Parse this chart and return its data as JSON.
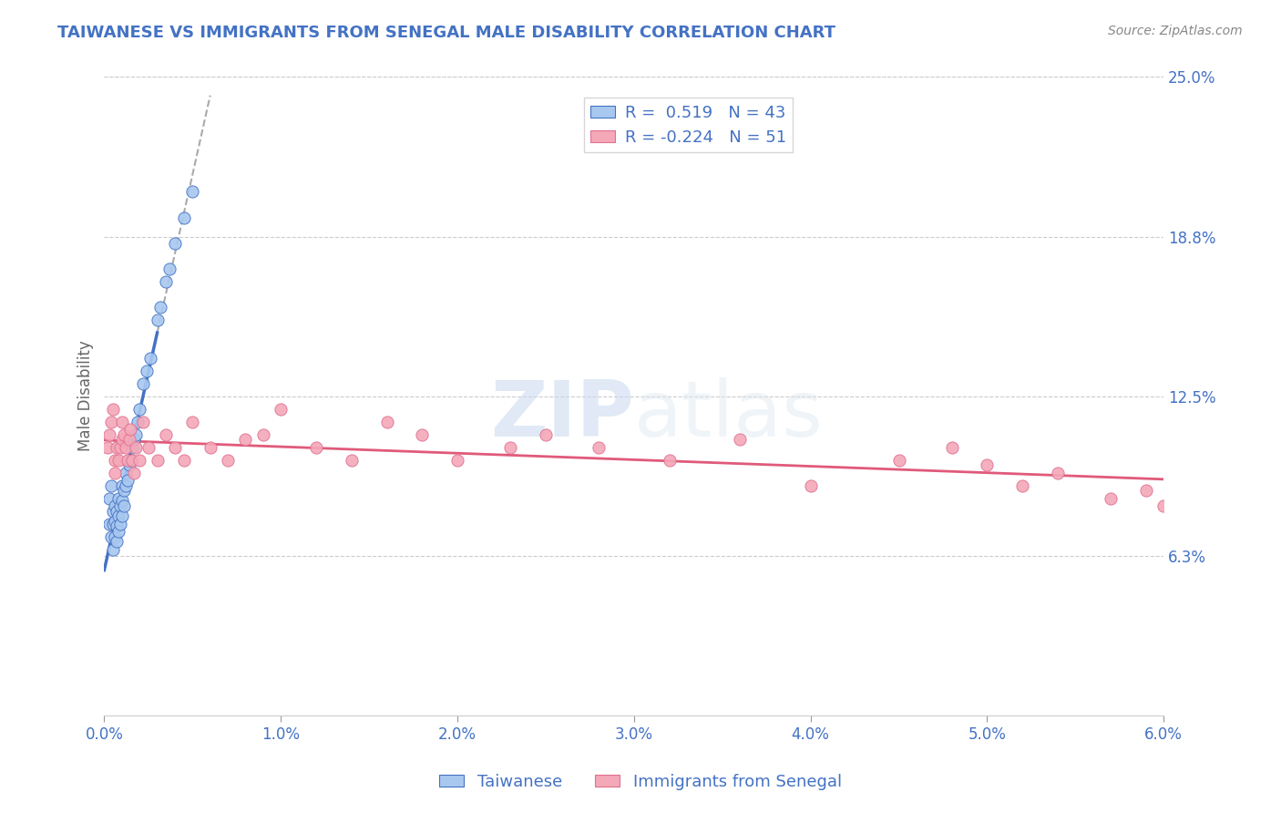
{
  "title": "TAIWANESE VS IMMIGRANTS FROM SENEGAL MALE DISABILITY CORRELATION CHART",
  "source": "Source: ZipAtlas.com",
  "xlabel": "",
  "ylabel": "Male Disability",
  "xmin": 0.0,
  "xmax": 0.06,
  "ymin": 0.0,
  "ymax": 0.25,
  "yticks": [
    0.0625,
    0.125,
    0.1875,
    0.25
  ],
  "ytick_labels": [
    "6.3%",
    "12.5%",
    "18.8%",
    "25.0%"
  ],
  "xticks": [
    0.0,
    0.01,
    0.02,
    0.03,
    0.04,
    0.05,
    0.06
  ],
  "xtick_labels": [
    "0.0%",
    "1.0%",
    "2.0%",
    "3.0%",
    "4.0%",
    "5.0%",
    "6.0%"
  ],
  "legend1_label": "Taiwanese",
  "legend2_label": "Immigrants from Senegal",
  "R1": 0.519,
  "N1": 43,
  "R2": -0.224,
  "N2": 51,
  "color_taiwanese": "#a8c8f0",
  "color_senegal": "#f4a8b8",
  "color_trend_taiwanese": "#4472c4",
  "color_trend_senegal": "#e05a7a",
  "color_title": "#4472c4",
  "color_source": "#888888",
  "color_ytick_labels": "#4472c4",
  "color_xtick_labels": "#4472c4",
  "watermark_zip": "ZIP",
  "watermark_atlas": "atlas",
  "taiwanese_x": [
    0.0003,
    0.0003,
    0.0004,
    0.0004,
    0.0005,
    0.0005,
    0.0005,
    0.0006,
    0.0006,
    0.0006,
    0.0007,
    0.0007,
    0.0007,
    0.0008,
    0.0008,
    0.0008,
    0.0009,
    0.0009,
    0.001,
    0.001,
    0.001,
    0.0011,
    0.0011,
    0.0012,
    0.0012,
    0.0013,
    0.0014,
    0.0015,
    0.0016,
    0.0017,
    0.0018,
    0.0019,
    0.002,
    0.0022,
    0.0024,
    0.0026,
    0.003,
    0.0032,
    0.0035,
    0.0037,
    0.004,
    0.0045,
    0.005
  ],
  "taiwanese_y": [
    0.085,
    0.075,
    0.09,
    0.07,
    0.075,
    0.065,
    0.08,
    0.07,
    0.076,
    0.082,
    0.068,
    0.074,
    0.08,
    0.072,
    0.078,
    0.085,
    0.075,
    0.082,
    0.078,
    0.084,
    0.09,
    0.082,
    0.088,
    0.09,
    0.095,
    0.092,
    0.098,
    0.1,
    0.105,
    0.108,
    0.11,
    0.115,
    0.12,
    0.13,
    0.135,
    0.14,
    0.155,
    0.16,
    0.17,
    0.175,
    0.185,
    0.195,
    0.205
  ],
  "senegal_x": [
    0.0002,
    0.0003,
    0.0004,
    0.0005,
    0.0006,
    0.0006,
    0.0007,
    0.0008,
    0.0009,
    0.001,
    0.001,
    0.0011,
    0.0012,
    0.0013,
    0.0014,
    0.0015,
    0.0016,
    0.0017,
    0.0018,
    0.002,
    0.0022,
    0.0025,
    0.003,
    0.0035,
    0.004,
    0.0045,
    0.005,
    0.006,
    0.007,
    0.008,
    0.009,
    0.01,
    0.012,
    0.014,
    0.016,
    0.018,
    0.02,
    0.023,
    0.025,
    0.028,
    0.032,
    0.036,
    0.04,
    0.045,
    0.048,
    0.05,
    0.052,
    0.054,
    0.057,
    0.059,
    0.06
  ],
  "senegal_y": [
    0.105,
    0.11,
    0.115,
    0.12,
    0.095,
    0.1,
    0.105,
    0.1,
    0.105,
    0.108,
    0.115,
    0.11,
    0.105,
    0.1,
    0.108,
    0.112,
    0.1,
    0.095,
    0.105,
    0.1,
    0.115,
    0.105,
    0.1,
    0.11,
    0.105,
    0.1,
    0.115,
    0.105,
    0.1,
    0.108,
    0.11,
    0.12,
    0.105,
    0.1,
    0.115,
    0.11,
    0.1,
    0.105,
    0.11,
    0.105,
    0.1,
    0.108,
    0.09,
    0.1,
    0.105,
    0.098,
    0.09,
    0.095,
    0.085,
    0.088,
    0.082
  ],
  "trend_tw_x0": 0.0,
  "trend_tw_x1": 0.006,
  "trend_tw_solid_x0": 0.0,
  "trend_tw_solid_x1": 0.003,
  "trend_sn_x0": 0.0,
  "trend_sn_x1": 0.06
}
